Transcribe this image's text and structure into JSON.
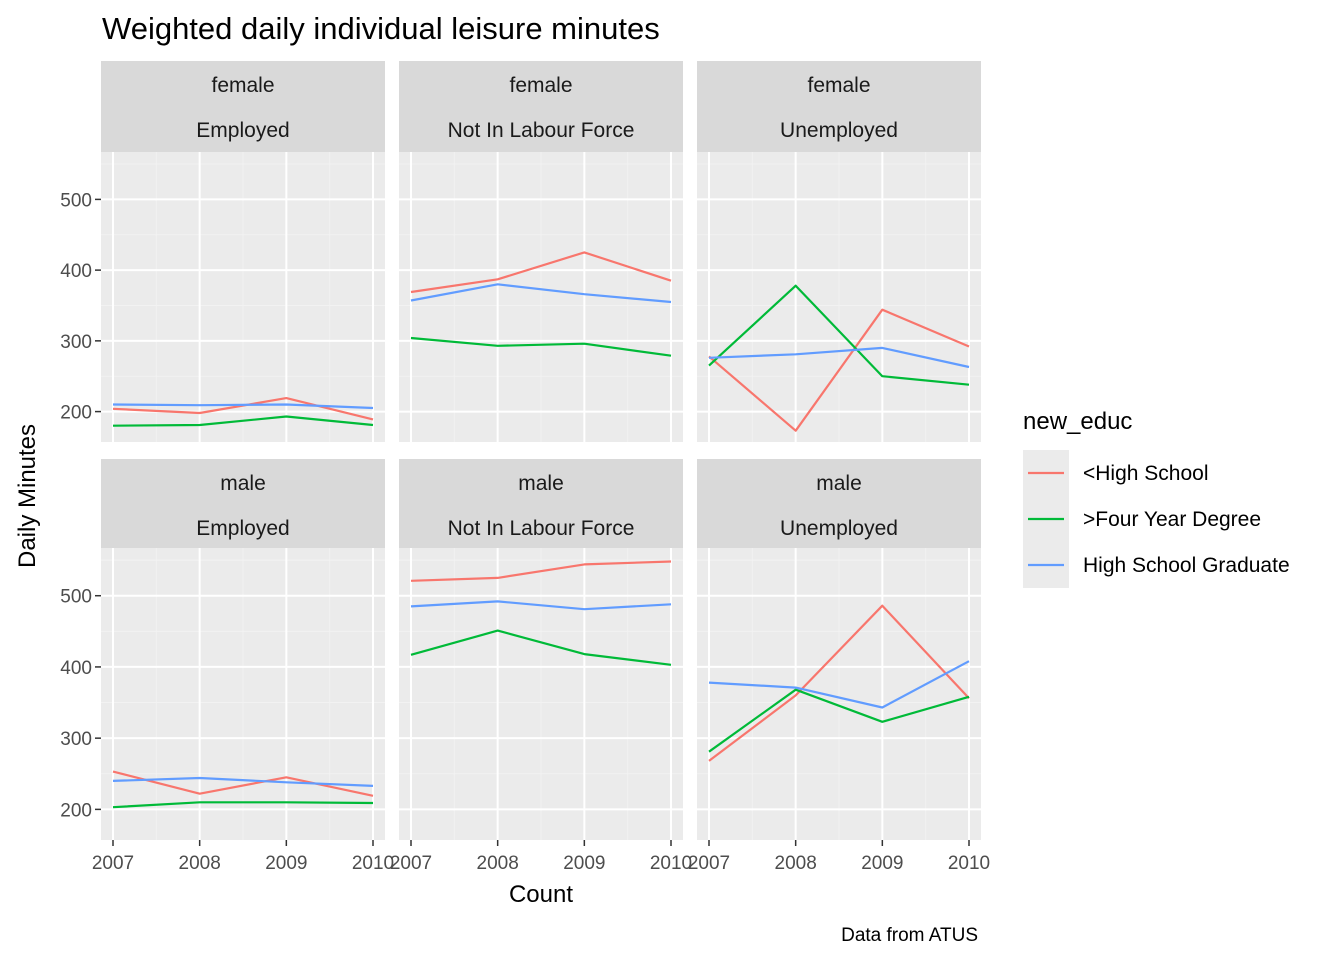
{
  "title": "Weighted daily individual leisure minutes",
  "caption": "Data from ATUS",
  "colors": {
    "panel_bg": "#EBEBEB",
    "strip_bg": "#D9D9D9",
    "grid_major": "#FFFFFF",
    "grid_minor": "#F2F2F2",
    "less_high_school": "#F8766D",
    "four_year": "#00BA38",
    "hs_grad": "#619CFF"
  },
  "chart_data": {
    "type": "line",
    "title": "Weighted daily individual leisure minutes",
    "xlabel": "Count",
    "ylabel": "Daily Minutes",
    "caption": "Data from ATUS",
    "x": [
      2007,
      2008,
      2009,
      2010
    ],
    "x_ticks": [
      "2007",
      "2008",
      "2009",
      "2010"
    ],
    "y_ticks": [
      "200",
      "300",
      "400",
      "500"
    ],
    "ylim": [
      157,
      567
    ],
    "grid": true,
    "legend": {
      "title": "new_educ",
      "position": "right",
      "entries": [
        "<High School",
        ">Four Year Degree",
        "High School Graduate"
      ]
    },
    "facets": [
      {
        "strip": [
          "female",
          "Employed"
        ],
        "series": [
          {
            "name": "<High School",
            "values": [
              204,
              198,
              219,
              189
            ]
          },
          {
            "name": ">Four Year Degree",
            "values": [
              180,
              181,
              193,
              181
            ]
          },
          {
            "name": "High School Graduate",
            "values": [
              210,
              209,
              210,
              205
            ]
          }
        ]
      },
      {
        "strip": [
          "female",
          "Not In Labour Force"
        ],
        "series": [
          {
            "name": "<High School",
            "values": [
              369,
              387,
              425,
              385
            ]
          },
          {
            "name": ">Four Year Degree",
            "values": [
              304,
              293,
              296,
              279
            ]
          },
          {
            "name": "High School Graduate",
            "values": [
              357,
              380,
              366,
              355
            ]
          }
        ]
      },
      {
        "strip": [
          "female",
          "Unemployed"
        ],
        "series": [
          {
            "name": "<High School",
            "values": [
              278,
              173,
              344,
              292
            ]
          },
          {
            "name": ">Four Year Degree",
            "values": [
              265,
              378,
              250,
              238
            ]
          },
          {
            "name": "High School Graduate",
            "values": [
              276,
              281,
              290,
              263
            ]
          }
        ]
      },
      {
        "strip": [
          "male",
          "Employed"
        ],
        "series": [
          {
            "name": "<High School",
            "values": [
              253,
              222,
              245,
              219
            ]
          },
          {
            "name": ">Four Year Degree",
            "values": [
              203,
              210,
              210,
              209
            ]
          },
          {
            "name": "High School Graduate",
            "values": [
              240,
              244,
              238,
              233
            ]
          }
        ]
      },
      {
        "strip": [
          "male",
          "Not In Labour Force"
        ],
        "series": [
          {
            "name": "<High School",
            "values": [
              521,
              525,
              544,
              548
            ]
          },
          {
            "name": ">Four Year Degree",
            "values": [
              417,
              451,
              418,
              403
            ]
          },
          {
            "name": "High School Graduate",
            "values": [
              485,
              492,
              481,
              488
            ]
          }
        ]
      },
      {
        "strip": [
          "male",
          "Unemployed"
        ],
        "series": [
          {
            "name": "<High School",
            "values": [
              268,
              360,
              486,
              356
            ]
          },
          {
            "name": ">Four Year Degree",
            "values": [
              281,
              368,
              323,
              358
            ]
          },
          {
            "name": "High School Graduate",
            "values": [
              378,
              371,
              343,
              408
            ]
          }
        ]
      }
    ]
  }
}
